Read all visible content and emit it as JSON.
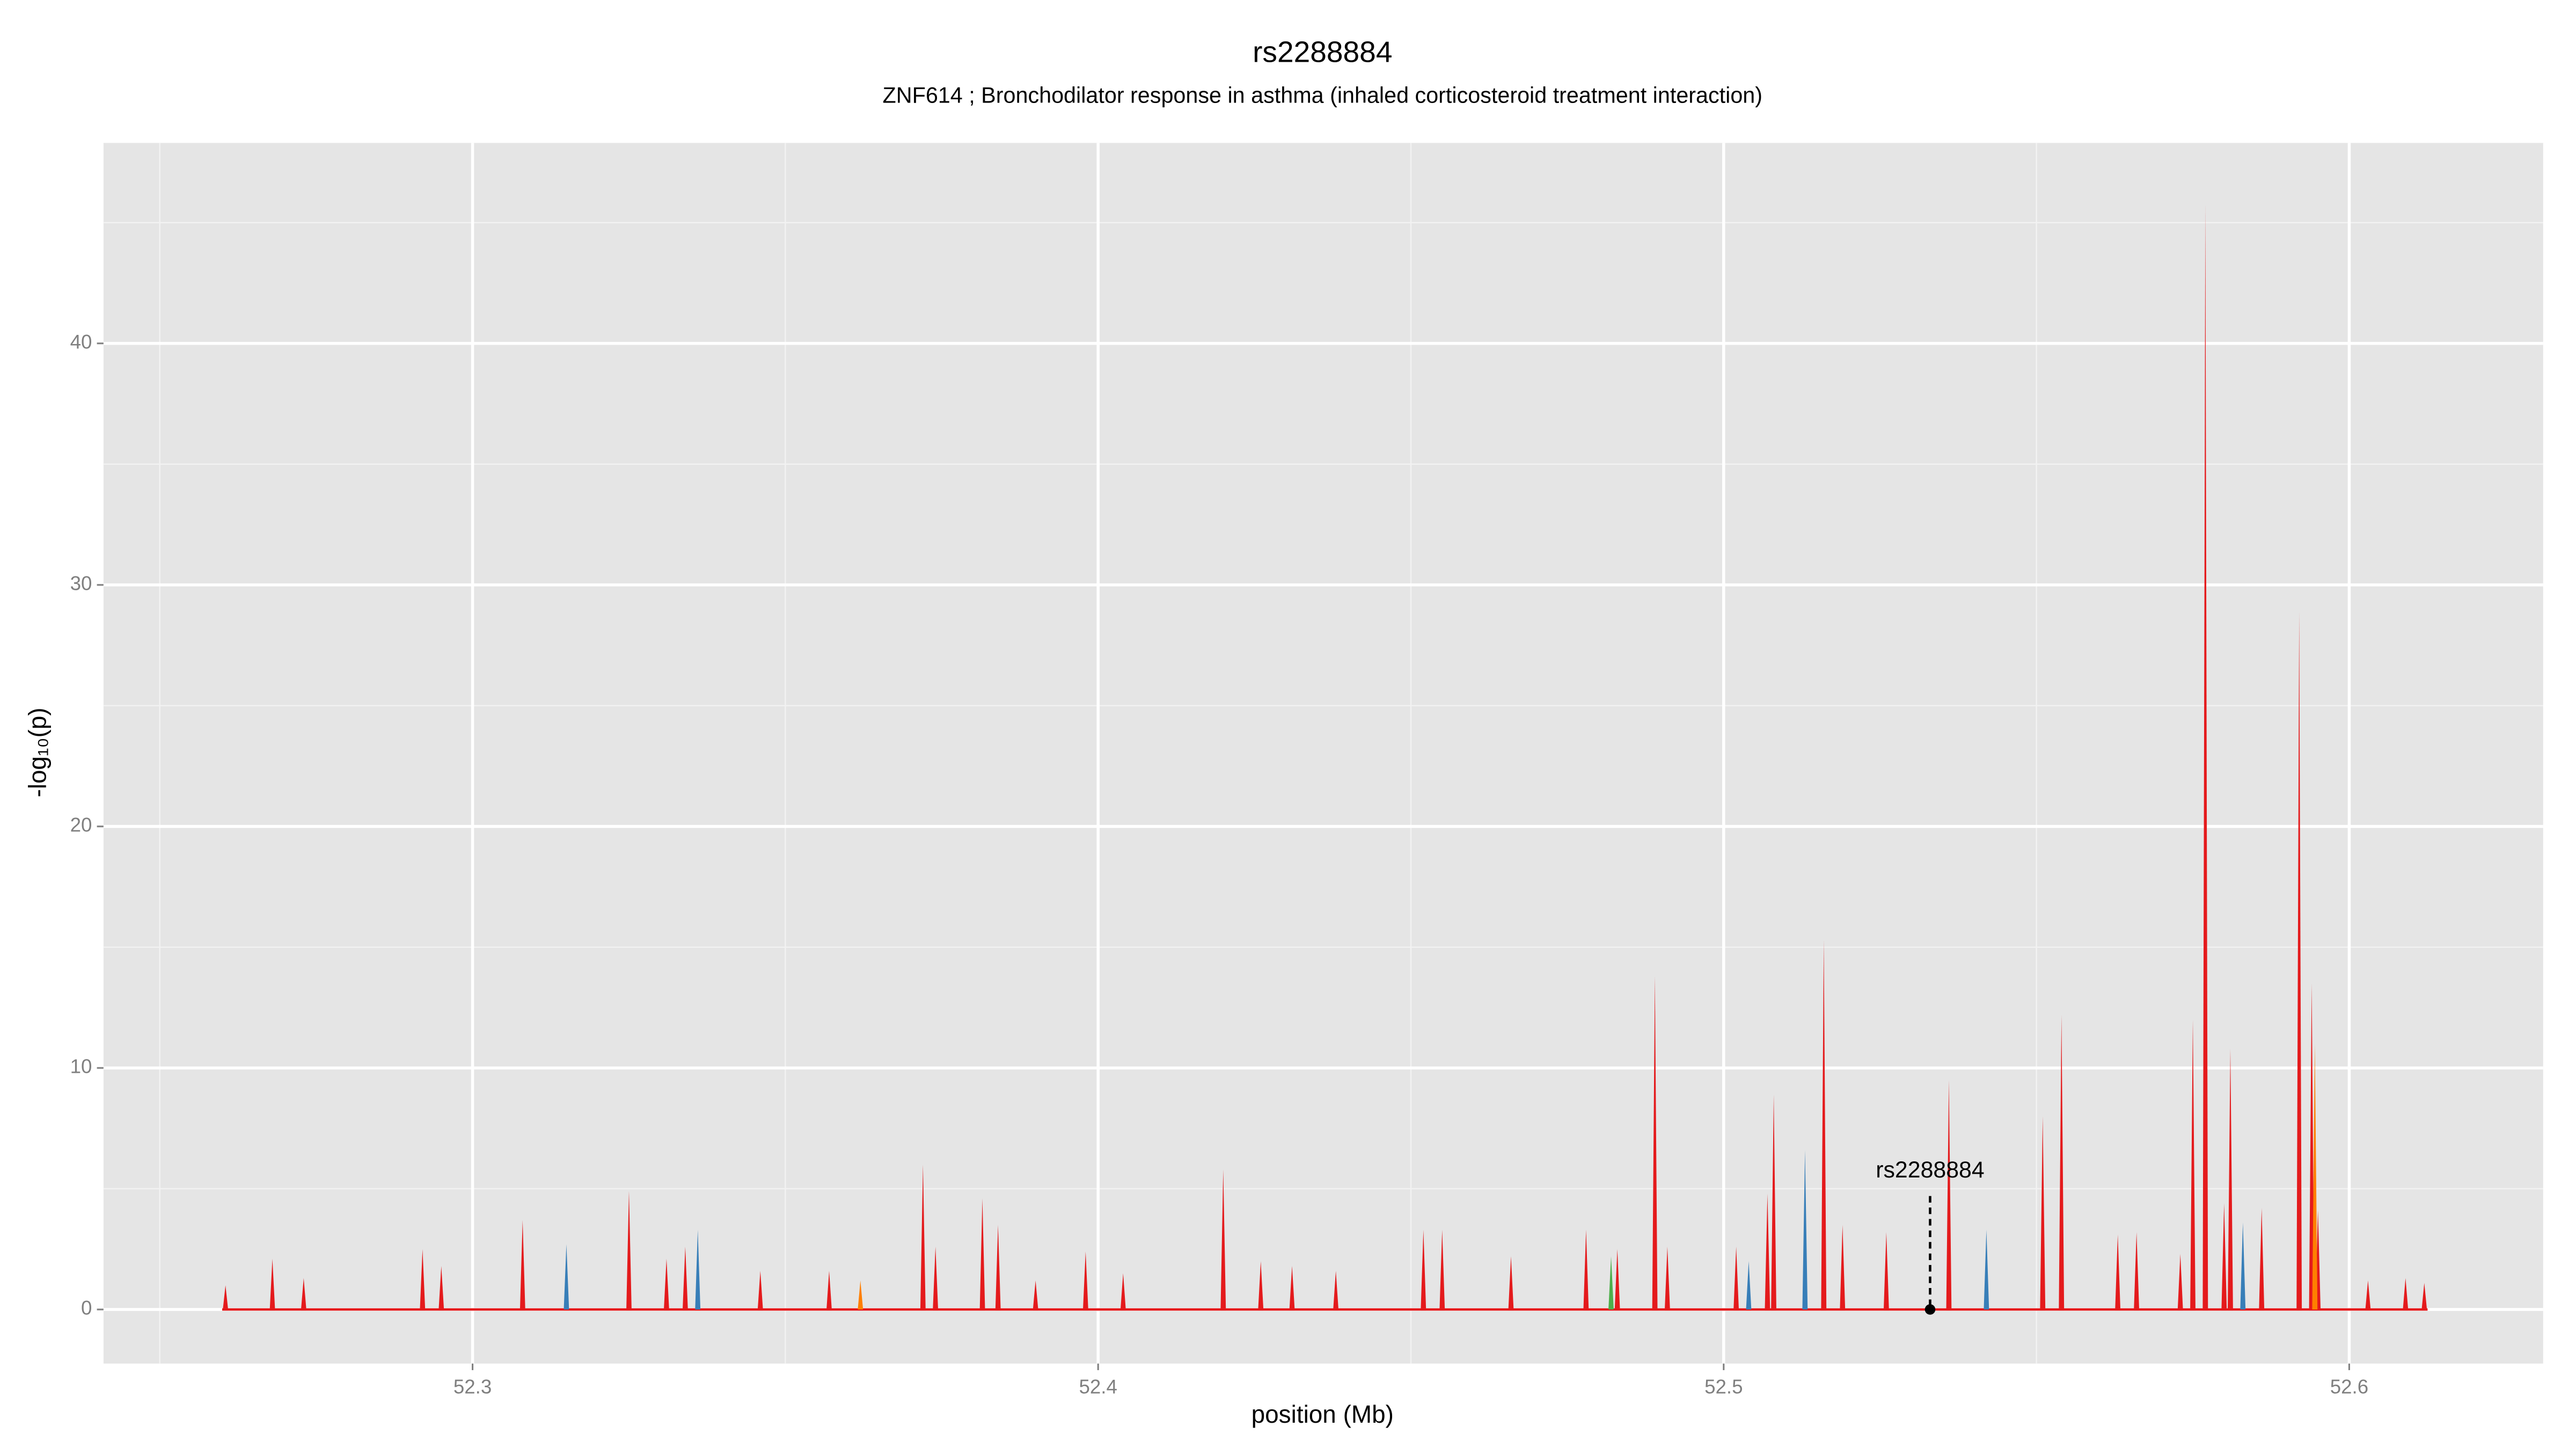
{
  "chart_data": {
    "type": "spike",
    "title": "rs2288884",
    "subtitle": "ZNF614 ; Bronchodilator response in asthma (inhaled corticosteroid treatment interaction)",
    "xlabel": "position (Mb)",
    "ylabel": "-log₁₀(p)",
    "xlim": [
      52.241,
      52.631
    ],
    "ylim": [
      -2.24,
      48.3
    ],
    "xticks": [
      52.3,
      52.4,
      52.5,
      52.6
    ],
    "yticks": [
      0,
      10,
      20,
      30,
      40
    ],
    "grid": true,
    "series": [
      {
        "color": "#e41a1c",
        "x": [
          52.2605,
          52.268,
          52.273,
          52.292,
          52.295,
          52.308,
          52.325,
          52.331,
          52.334,
          52.346,
          52.357,
          52.372,
          52.374,
          52.3815,
          52.384,
          52.39,
          52.398,
          52.404,
          52.42,
          52.426,
          52.431,
          52.438,
          52.452,
          52.455,
          52.466,
          52.478,
          52.483,
          52.489,
          52.491,
          52.502,
          52.507,
          52.508,
          52.516,
          52.519,
          52.526,
          52.536,
          52.551,
          52.554,
          52.563,
          52.566,
          52.573,
          52.575,
          52.577,
          52.58,
          52.581,
          52.586,
          52.592,
          52.594,
          52.595,
          52.603,
          52.609,
          52.612
        ],
        "values": [
          1,
          2.1,
          1.3,
          2.5,
          1.8,
          3.7,
          4.9,
          2.1,
          2.6,
          1.6,
          1.6,
          6,
          2.6,
          4.6,
          3.5,
          1.2,
          2.4,
          1.5,
          5.8,
          2,
          1.8,
          1.6,
          3.3,
          3.3,
          2.2,
          3.3,
          2.5,
          13.8,
          2.6,
          2.6,
          4.8,
          8.9,
          15.3,
          3.5,
          3.2,
          9.5,
          8,
          12.2,
          3.1,
          3.2,
          2.3,
          12,
          45.8,
          4.4,
          10.8,
          4.2,
          28.9,
          13.5,
          4.1,
          1.2,
          1.3,
          1.1
        ]
      },
      {
        "color": "#377eb8",
        "x": [
          52.315,
          52.336,
          52.504,
          52.513,
          52.542,
          52.583
        ],
        "values": [
          2.7,
          3.3,
          2.0,
          6.6,
          3.3,
          3.6
        ]
      },
      {
        "color": "#ff7f00",
        "x": [
          52.362,
          52.5945
        ],
        "values": [
          1.2,
          11
        ]
      },
      {
        "color": "#4daf4a",
        "x": [
          52.482
        ],
        "values": [
          2.2
        ]
      }
    ],
    "annotation": {
      "text": "rs2288884",
      "x": 52.533,
      "y": 0
    }
  }
}
